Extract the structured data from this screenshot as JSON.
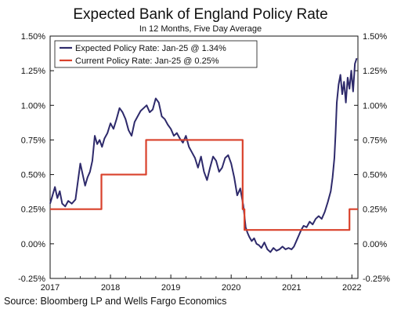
{
  "chart_data": {
    "type": "line",
    "title": "Expected Bank of England Policy Rate",
    "subtitle": "In 12 Months, Five Day Average",
    "xlim": [
      2017,
      2022.1
    ],
    "ylim": [
      -0.25,
      1.5
    ],
    "x_ticks": [
      "2017",
      "2018",
      "2019",
      "2020",
      "2021",
      "2022"
    ],
    "y_ticks_left": [
      "1.50%",
      "1.25%",
      "1.00%",
      "0.75%",
      "0.50%",
      "0.25%",
      "0.00%",
      "-0.25%"
    ],
    "y_ticks_right": [
      "1.50%",
      "1.25%",
      "1.00%",
      "0.75%",
      "0.50%",
      "0.25%",
      "0.00%",
      "-0.25%"
    ],
    "grid": false,
    "legend_position": "top-left",
    "series": [
      {
        "name": "Expected Policy Rate: Jan-25 @ 1.34%",
        "color": "#2e2a6b",
        "points": [
          [
            2017.0,
            0.29
          ],
          [
            2017.04,
            0.35
          ],
          [
            2017.08,
            0.41
          ],
          [
            2017.12,
            0.33
          ],
          [
            2017.16,
            0.38
          ],
          [
            2017.2,
            0.29
          ],
          [
            2017.25,
            0.27
          ],
          [
            2017.3,
            0.31
          ],
          [
            2017.36,
            0.29
          ],
          [
            2017.42,
            0.32
          ],
          [
            2017.46,
            0.45
          ],
          [
            2017.5,
            0.58
          ],
          [
            2017.54,
            0.5
          ],
          [
            2017.58,
            0.42
          ],
          [
            2017.62,
            0.48
          ],
          [
            2017.66,
            0.52
          ],
          [
            2017.7,
            0.6
          ],
          [
            2017.74,
            0.78
          ],
          [
            2017.78,
            0.72
          ],
          [
            2017.82,
            0.75
          ],
          [
            2017.86,
            0.7
          ],
          [
            2017.9,
            0.76
          ],
          [
            2017.95,
            0.8
          ],
          [
            2018.0,
            0.87
          ],
          [
            2018.05,
            0.83
          ],
          [
            2018.1,
            0.9
          ],
          [
            2018.15,
            0.98
          ],
          [
            2018.2,
            0.95
          ],
          [
            2018.25,
            0.9
          ],
          [
            2018.3,
            0.82
          ],
          [
            2018.35,
            0.78
          ],
          [
            2018.4,
            0.88
          ],
          [
            2018.45,
            0.92
          ],
          [
            2018.5,
            0.96
          ],
          [
            2018.55,
            0.98
          ],
          [
            2018.6,
            1.0
          ],
          [
            2018.65,
            0.95
          ],
          [
            2018.7,
            0.97
          ],
          [
            2018.75,
            1.05
          ],
          [
            2018.8,
            1.02
          ],
          [
            2018.85,
            0.92
          ],
          [
            2018.9,
            0.9
          ],
          [
            2018.95,
            0.86
          ],
          [
            2019.0,
            0.83
          ],
          [
            2019.05,
            0.78
          ],
          [
            2019.1,
            0.8
          ],
          [
            2019.15,
            0.76
          ],
          [
            2019.2,
            0.73
          ],
          [
            2019.25,
            0.78
          ],
          [
            2019.3,
            0.7
          ],
          [
            2019.35,
            0.66
          ],
          [
            2019.4,
            0.62
          ],
          [
            2019.45,
            0.55
          ],
          [
            2019.5,
            0.63
          ],
          [
            2019.55,
            0.52
          ],
          [
            2019.6,
            0.46
          ],
          [
            2019.65,
            0.55
          ],
          [
            2019.7,
            0.63
          ],
          [
            2019.75,
            0.6
          ],
          [
            2019.8,
            0.52
          ],
          [
            2019.85,
            0.55
          ],
          [
            2019.9,
            0.62
          ],
          [
            2019.95,
            0.64
          ],
          [
            2020.0,
            0.58
          ],
          [
            2020.05,
            0.48
          ],
          [
            2020.1,
            0.35
          ],
          [
            2020.15,
            0.4
          ],
          [
            2020.2,
            0.28
          ],
          [
            2020.24,
            0.12
          ],
          [
            2020.27,
            0.08
          ],
          [
            2020.3,
            0.05
          ],
          [
            2020.34,
            0.02
          ],
          [
            2020.38,
            0.04
          ],
          [
            2020.42,
            0.0
          ],
          [
            2020.46,
            -0.01
          ],
          [
            2020.5,
            -0.03
          ],
          [
            2020.55,
            0.01
          ],
          [
            2020.6,
            -0.04
          ],
          [
            2020.65,
            -0.06
          ],
          [
            2020.7,
            -0.03
          ],
          [
            2020.75,
            -0.05
          ],
          [
            2020.8,
            -0.04
          ],
          [
            2020.85,
            -0.02
          ],
          [
            2020.9,
            -0.04
          ],
          [
            2020.95,
            -0.03
          ],
          [
            2021.0,
            -0.04
          ],
          [
            2021.04,
            -0.02
          ],
          [
            2021.08,
            0.02
          ],
          [
            2021.12,
            0.06
          ],
          [
            2021.16,
            0.1
          ],
          [
            2021.2,
            0.13
          ],
          [
            2021.25,
            0.12
          ],
          [
            2021.3,
            0.16
          ],
          [
            2021.35,
            0.14
          ],
          [
            2021.4,
            0.18
          ],
          [
            2021.45,
            0.2
          ],
          [
            2021.5,
            0.18
          ],
          [
            2021.55,
            0.23
          ],
          [
            2021.6,
            0.3
          ],
          [
            2021.65,
            0.38
          ],
          [
            2021.68,
            0.48
          ],
          [
            2021.71,
            0.62
          ],
          [
            2021.73,
            0.8
          ],
          [
            2021.75,
            1.02
          ],
          [
            2021.78,
            1.15
          ],
          [
            2021.81,
            1.22
          ],
          [
            2021.84,
            1.08
          ],
          [
            2021.87,
            1.17
          ],
          [
            2021.9,
            1.02
          ],
          [
            2021.93,
            1.2
          ],
          [
            2021.96,
            1.12
          ],
          [
            2021.99,
            1.25
          ],
          [
            2022.02,
            1.1
          ],
          [
            2022.05,
            1.3
          ],
          [
            2022.08,
            1.34
          ]
        ]
      },
      {
        "name": "Current Policy Rate: Jan-25 @ 0.25%",
        "color": "#d9412b",
        "points": [
          [
            2017.0,
            0.25
          ],
          [
            2017.85,
            0.25
          ],
          [
            2017.85,
            0.5
          ],
          [
            2018.59,
            0.5
          ],
          [
            2018.59,
            0.75
          ],
          [
            2020.19,
            0.75
          ],
          [
            2020.19,
            0.25
          ],
          [
            2020.22,
            0.25
          ],
          [
            2020.22,
            0.1
          ],
          [
            2021.96,
            0.1
          ],
          [
            2021.96,
            0.25
          ],
          [
            2022.1,
            0.25
          ]
        ]
      }
    ]
  },
  "source": "Source: Bloomberg LP and Wells Fargo Economics"
}
